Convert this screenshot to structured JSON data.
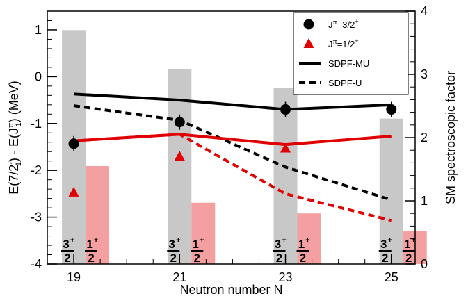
{
  "chart_data": {
    "type": "bar+line",
    "x_ticks": [
      19,
      21,
      23,
      25
    ],
    "xlabel": "Neutron number N",
    "ylabel_left": "E(7/2⁻₁) - E(J^π₁)   (MeV)",
    "ylabel_right": "SM spectroscopic factor",
    "ylim_left": [
      -4,
      1.4
    ],
    "yticks_left": [
      -4,
      -3,
      -2,
      -1,
      0,
      1
    ],
    "ylim_right": [
      0,
      4
    ],
    "yticks_right": [
      0,
      1,
      2,
      3,
      4
    ],
    "bars": [
      {
        "name": "3/2+ spectroscopic factor",
        "color": "#c8c8c8",
        "x": [
          19,
          21,
          23,
          25
        ],
        "values": [
          3.7,
          3.08,
          2.78,
          2.3
        ]
      },
      {
        "name": "1/2+ spectroscopic factor",
        "color": "#f4a0a0",
        "x": [
          19,
          21,
          23,
          25
        ],
        "values": [
          1.55,
          0.97,
          0.8,
          0.52
        ]
      }
    ],
    "bar_labels": [
      {
        "x": 19,
        "texts": [
          "3+",
          "2",
          "1+",
          "2"
        ]
      },
      {
        "x": 21,
        "texts": [
          "3+",
          "2",
          "1+",
          "2"
        ]
      },
      {
        "x": 23,
        "texts": [
          "3+",
          "2",
          "1+",
          "2"
        ]
      },
      {
        "x": 25,
        "texts": [
          "3+",
          "2",
          "1+",
          "2"
        ]
      }
    ],
    "series": [
      {
        "name": "Jπ=3/2+",
        "kind": "points",
        "marker": "circle",
        "color": "#000000",
        "x": [
          19,
          21,
          23,
          25
        ],
        "values": [
          -1.43,
          -0.97,
          -0.7,
          -0.7
        ]
      },
      {
        "name": "Jπ=1/2+",
        "kind": "points",
        "marker": "triangle",
        "color": "#e00000",
        "x": [
          19,
          21,
          23,
          25
        ],
        "values": [
          -2.47,
          -1.7,
          -1.53,
          null
        ]
      },
      {
        "name": "SDPF-MU",
        "kind": "line",
        "style": "solid",
        "color": "#000000",
        "x": [
          19,
          21,
          23,
          25
        ],
        "values": [
          -0.37,
          -0.5,
          -0.7,
          -0.6
        ]
      },
      {
        "name": "SDPF-U",
        "kind": "line",
        "style": "dashed",
        "color": "#000000",
        "x": [
          19,
          21,
          23,
          25
        ],
        "values": [
          -0.62,
          -0.93,
          -1.93,
          -2.63
        ]
      },
      {
        "name": "SDPF-MU 1/2+",
        "kind": "line",
        "style": "solid",
        "color": "#e00000",
        "x": [
          19,
          21,
          23,
          25
        ],
        "values": [
          -1.37,
          -1.23,
          -1.45,
          -1.27
        ]
      },
      {
        "name": "SDPF-U 1/2+",
        "kind": "line",
        "style": "dashed",
        "color": "#e00000",
        "x": [
          19,
          21,
          23,
          25
        ],
        "values": [
          -1.37,
          -1.23,
          -2.5,
          -3.07
        ]
      }
    ],
    "legend": {
      "placement": "top-right",
      "entries": [
        {
          "label": "Jπ=3/2+",
          "marker": "circle",
          "color": "#000000"
        },
        {
          "label": "Jπ=1/2+",
          "marker": "triangle",
          "color": "#e00000"
        },
        {
          "label": "SDPF-MU",
          "marker": "solid-line",
          "color": "#000000"
        },
        {
          "label": "SDPF-U",
          "marker": "dashed-line",
          "color": "#000000"
        }
      ]
    },
    "grid": false
  }
}
